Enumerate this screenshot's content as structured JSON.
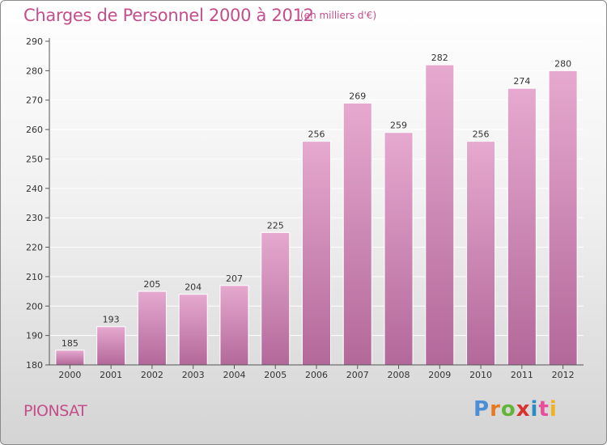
{
  "header": {
    "title": "Charges de Personnel 2000 à 2012",
    "subtitle": "(en milliers d'€)"
  },
  "footer": {
    "commune": "PIONSAT",
    "logo_letters": [
      "P",
      "r",
      "o",
      "x",
      "i",
      "t",
      "i"
    ],
    "logo_colors": [
      "#4a8fd6",
      "#e8791f",
      "#63b53a",
      "#d9322e",
      "#2d8ac9",
      "#e84e9c",
      "#f0b21e"
    ]
  },
  "colors": {
    "bar_light": "#e6a9cf",
    "bar_dark": "#b3689a",
    "axis": "#555555",
    "gridline": "#ffffff"
  },
  "chart_data": {
    "type": "bar",
    "categories": [
      "2000",
      "2001",
      "2002",
      "2003",
      "2004",
      "2005",
      "2006",
      "2007",
      "2008",
      "2009",
      "2010",
      "2011",
      "2012"
    ],
    "values": [
      185,
      193,
      205,
      204,
      207,
      225,
      256,
      269,
      259,
      282,
      256,
      274,
      280
    ],
    "yticks": [
      180,
      190,
      200,
      210,
      220,
      230,
      240,
      250,
      260,
      270,
      280,
      290
    ],
    "ylim": [
      180,
      290
    ],
    "grid": true
  }
}
